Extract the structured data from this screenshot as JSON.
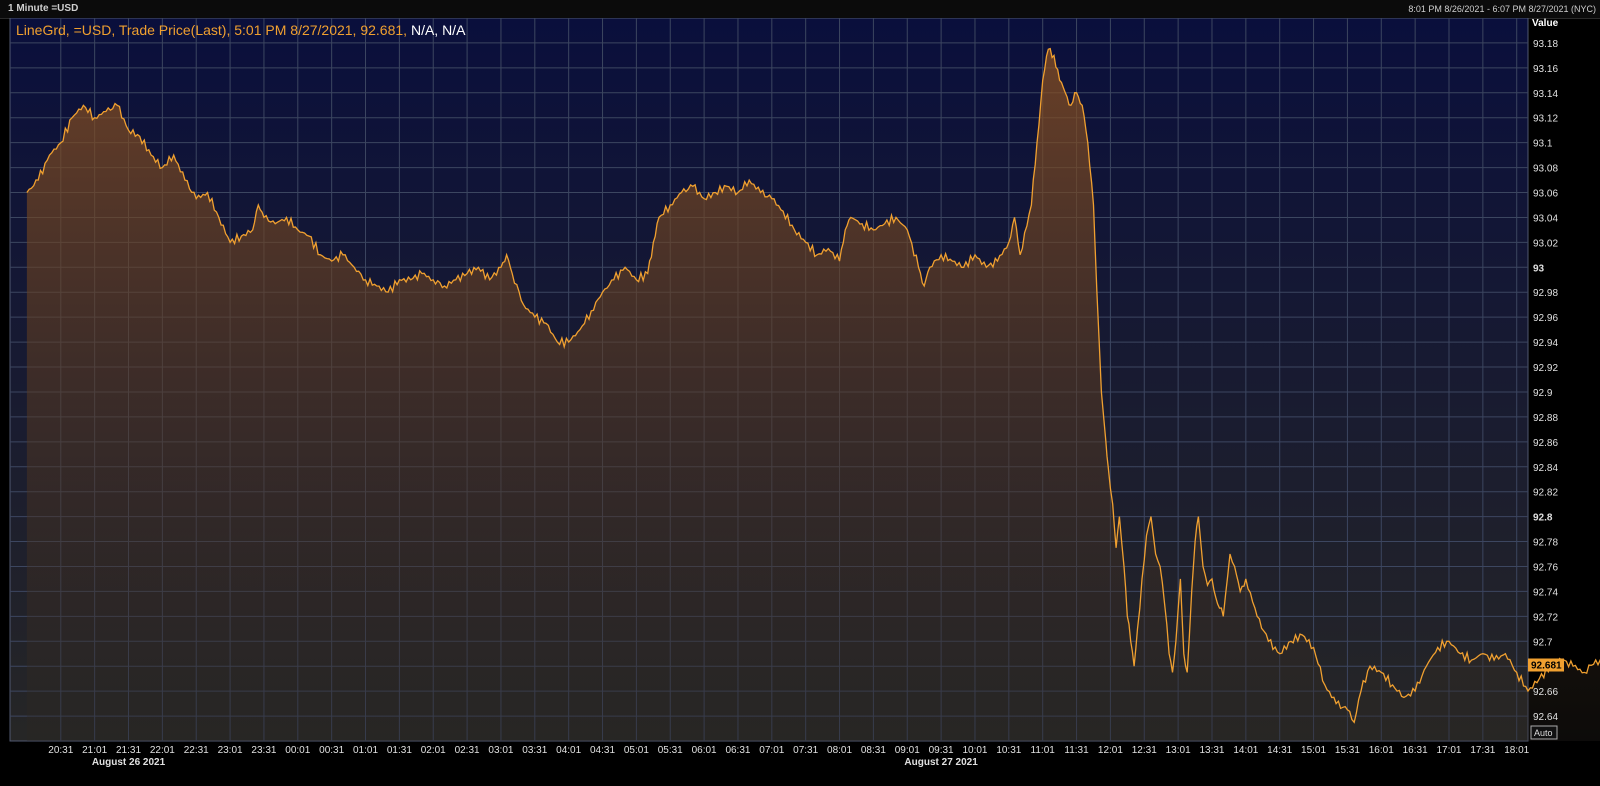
{
  "header": {
    "left_label": "1 Minute =USD",
    "range_label": "8:01 PM 8/26/2021 - 6:07 PM 8/27/2021 (NYC)"
  },
  "legend": {
    "text": "LineGrd, =USD, Trade Price(Last), 5:01 PM 8/27/2021, 92.681,",
    "na": "N/A, N/A"
  },
  "axis": {
    "value_label": "Value",
    "auto_label": "Auto",
    "last_price": "92.681"
  },
  "colors": {
    "line": "#f0a030",
    "plot_bg_top": "#0a0f3c",
    "plot_bg_bottom": "#262626",
    "grid": "#3c4660"
  },
  "chart_data": {
    "type": "area",
    "title": "",
    "xlabel": "",
    "ylabel": "Value",
    "ylim": [
      92.62,
      93.2
    ],
    "xlim_minutes": [
      -15,
      1330
    ],
    "y_ticks": [
      "92.64",
      "92.66",
      "92.68",
      "92.7",
      "92.72",
      "92.74",
      "92.76",
      "92.78",
      "92.8",
      "92.82",
      "92.84",
      "92.86",
      "92.88",
      "92.9",
      "92.92",
      "92.94",
      "92.96",
      "92.98",
      "93",
      "93.02",
      "93.04",
      "93.06",
      "93.08",
      "93.1",
      "93.12",
      "93.14",
      "93.16",
      "93.18"
    ],
    "x_ticks": [
      "20:31",
      "21:01",
      "21:31",
      "22:01",
      "22:31",
      "23:01",
      "23:31",
      "00:01",
      "00:31",
      "01:01",
      "01:31",
      "02:01",
      "02:31",
      "03:01",
      "03:31",
      "04:01",
      "04:31",
      "05:01",
      "05:31",
      "06:01",
      "06:31",
      "07:01",
      "07:31",
      "08:01",
      "08:31",
      "09:01",
      "09:31",
      "10:01",
      "10:31",
      "11:01",
      "11:31",
      "12:01",
      "12:31",
      "13:01",
      "13:31",
      "14:01",
      "14:31",
      "15:01",
      "15:31",
      "16:01",
      "16:31",
      "17:01",
      "17:31",
      "18:01"
    ],
    "date_labels": [
      {
        "label": "August 26 2021",
        "at_tick": "21:31"
      },
      {
        "label": "August 27 2021",
        "at_tick": "09:31"
      }
    ],
    "series": [
      {
        "points": [
          [
            0,
            93.06
          ],
          [
            10,
            93.07
          ],
          [
            20,
            93.09
          ],
          [
            30,
            93.1
          ],
          [
            40,
            93.12
          ],
          [
            50,
            93.13
          ],
          [
            60,
            93.12
          ],
          [
            70,
            93.125
          ],
          [
            80,
            93.13
          ],
          [
            90,
            93.11
          ],
          [
            100,
            93.105
          ],
          [
            110,
            93.09
          ],
          [
            120,
            93.08
          ],
          [
            130,
            93.09
          ],
          [
            140,
            93.07
          ],
          [
            150,
            93.055
          ],
          [
            160,
            93.06
          ],
          [
            170,
            93.04
          ],
          [
            180,
            93.02
          ],
          [
            190,
            93.025
          ],
          [
            200,
            93.03
          ],
          [
            205,
            93.05
          ],
          [
            210,
            93.04
          ],
          [
            220,
            93.035
          ],
          [
            230,
            93.04
          ],
          [
            240,
            93.03
          ],
          [
            250,
            93.025
          ],
          [
            260,
            93.01
          ],
          [
            270,
            93.005
          ],
          [
            280,
            93.01
          ],
          [
            290,
            93.0
          ],
          [
            300,
            92.99
          ],
          [
            310,
            92.985
          ],
          [
            320,
            92.98
          ],
          [
            330,
            92.99
          ],
          [
            340,
            92.99
          ],
          [
            350,
            92.995
          ],
          [
            360,
            92.99
          ],
          [
            370,
            92.985
          ],
          [
            380,
            92.99
          ],
          [
            390,
            92.995
          ],
          [
            400,
            93.0
          ],
          [
            410,
            92.99
          ],
          [
            420,
            93.0
          ],
          [
            425,
            93.01
          ],
          [
            430,
            92.995
          ],
          [
            440,
            92.97
          ],
          [
            450,
            92.96
          ],
          [
            460,
            92.955
          ],
          [
            470,
            92.94
          ],
          [
            480,
            92.94
          ],
          [
            490,
            92.95
          ],
          [
            500,
            92.965
          ],
          [
            510,
            92.98
          ],
          [
            520,
            92.99
          ],
          [
            530,
            93.0
          ],
          [
            540,
            92.99
          ],
          [
            550,
            92.995
          ],
          [
            555,
            93.02
          ],
          [
            560,
            93.04
          ],
          [
            570,
            93.05
          ],
          [
            580,
            93.06
          ],
          [
            590,
            93.065
          ],
          [
            600,
            93.055
          ],
          [
            610,
            93.06
          ],
          [
            620,
            93.065
          ],
          [
            630,
            93.06
          ],
          [
            640,
            93.07
          ],
          [
            650,
            93.06
          ],
          [
            660,
            93.055
          ],
          [
            670,
            93.045
          ],
          [
            680,
            93.03
          ],
          [
            690,
            93.02
          ],
          [
            700,
            93.01
          ],
          [
            710,
            93.015
          ],
          [
            720,
            93.005
          ],
          [
            725,
            93.03
          ],
          [
            730,
            93.04
          ],
          [
            740,
            93.035
          ],
          [
            750,
            93.03
          ],
          [
            760,
            93.035
          ],
          [
            770,
            93.04
          ],
          [
            780,
            93.03
          ],
          [
            790,
            93.0
          ],
          [
            795,
            92.985
          ],
          [
            800,
            93.0
          ],
          [
            810,
            93.01
          ],
          [
            820,
            93.005
          ],
          [
            830,
            93.0
          ],
          [
            840,
            93.01
          ],
          [
            850,
            93.0
          ],
          [
            860,
            93.005
          ],
          [
            870,
            93.02
          ],
          [
            875,
            93.04
          ],
          [
            880,
            93.01
          ],
          [
            890,
            93.05
          ],
          [
            895,
            93.1
          ],
          [
            900,
            93.15
          ],
          [
            905,
            93.175
          ],
          [
            910,
            93.17
          ],
          [
            915,
            93.15
          ],
          [
            920,
            93.14
          ],
          [
            925,
            93.13
          ],
          [
            930,
            93.14
          ],
          [
            935,
            93.13
          ],
          [
            940,
            93.1
          ],
          [
            945,
            93.05
          ],
          [
            948,
            92.98
          ],
          [
            952,
            92.9
          ],
          [
            956,
            92.86
          ],
          [
            958,
            92.84
          ],
          [
            962,
            92.81
          ],
          [
            965,
            92.775
          ],
          [
            968,
            92.8
          ],
          [
            972,
            92.76
          ],
          [
            975,
            92.72
          ],
          [
            978,
            92.7
          ],
          [
            981,
            92.68
          ],
          [
            984,
            92.71
          ],
          [
            988,
            92.75
          ],
          [
            992,
            92.785
          ],
          [
            996,
            92.8
          ],
          [
            1000,
            92.77
          ],
          [
            1004,
            92.76
          ],
          [
            1008,
            92.73
          ],
          [
            1012,
            92.69
          ],
          [
            1015,
            92.675
          ],
          [
            1018,
            92.7
          ],
          [
            1022,
            92.75
          ],
          [
            1025,
            92.69
          ],
          [
            1028,
            92.675
          ],
          [
            1032,
            92.74
          ],
          [
            1035,
            92.78
          ],
          [
            1038,
            92.8
          ],
          [
            1042,
            92.76
          ],
          [
            1046,
            92.745
          ],
          [
            1050,
            92.75
          ],
          [
            1055,
            92.73
          ],
          [
            1060,
            92.72
          ],
          [
            1066,
            92.77
          ],
          [
            1070,
            92.76
          ],
          [
            1075,
            92.74
          ],
          [
            1080,
            92.75
          ],
          [
            1090,
            92.72
          ],
          [
            1100,
            92.7
          ],
          [
            1110,
            92.69
          ],
          [
            1120,
            92.7
          ],
          [
            1130,
            92.705
          ],
          [
            1140,
            92.695
          ],
          [
            1150,
            92.665
          ],
          [
            1160,
            92.65
          ],
          [
            1170,
            92.645
          ],
          [
            1176,
            92.635
          ],
          [
            1182,
            92.66
          ],
          [
            1190,
            92.68
          ],
          [
            1200,
            92.675
          ],
          [
            1210,
            92.665
          ],
          [
            1220,
            92.655
          ],
          [
            1230,
            92.66
          ],
          [
            1240,
            92.68
          ],
          [
            1250,
            92.695
          ],
          [
            1260,
            92.7
          ],
          [
            1270,
            92.69
          ],
          [
            1280,
            92.685
          ],
          [
            1290,
            92.69
          ],
          [
            1300,
            92.685
          ],
          [
            1310,
            92.69
          ],
          [
            1320,
            92.675
          ],
          [
            1330,
            92.66
          ],
          [
            1340,
            92.67
          ],
          [
            1350,
            92.68
          ],
          [
            1360,
            92.685
          ],
          [
            1370,
            92.68
          ],
          [
            1380,
            92.675
          ],
          [
            1390,
            92.685
          ],
          [
            1400,
            92.68
          ],
          [
            1410,
            92.68
          ],
          [
            1420,
            92.685
          ],
          [
            1430,
            92.68
          ],
          [
            1440,
            92.685
          ],
          [
            1450,
            92.68
          ],
          [
            1455,
            92.681
          ]
        ]
      }
    ]
  }
}
